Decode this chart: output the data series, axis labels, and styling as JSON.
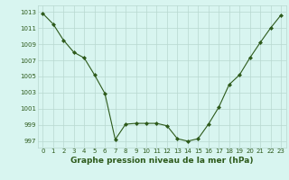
{
  "x": [
    0,
    1,
    2,
    3,
    4,
    5,
    6,
    7,
    8,
    9,
    10,
    11,
    12,
    13,
    14,
    15,
    16,
    17,
    18,
    19,
    20,
    21,
    22,
    23
  ],
  "y": [
    1012.8,
    1011.5,
    1009.5,
    1008.0,
    1007.3,
    1005.2,
    1002.9,
    997.2,
    999.1,
    999.2,
    999.2,
    999.2,
    998.9,
    997.3,
    997.0,
    997.3,
    999.1,
    1001.2,
    1004.0,
    1005.2,
    1007.3,
    1009.2,
    1011.0,
    1012.6
  ],
  "line_color": "#2d5a1b",
  "marker": "D",
  "marker_size": 2,
  "bg_color": "#d8f5f0",
  "grid_color": "#b8d8d0",
  "xlabel": "Graphe pression niveau de la mer (hPa)",
  "xlabel_fontsize": 6.5,
  "ylabel_ticks": [
    997,
    999,
    1001,
    1003,
    1005,
    1007,
    1009,
    1011,
    1013
  ],
  "ylim": [
    996.2,
    1013.8
  ],
  "xlim": [
    -0.5,
    23.5
  ],
  "xticks": [
    0,
    1,
    2,
    3,
    4,
    5,
    6,
    7,
    8,
    9,
    10,
    11,
    12,
    13,
    14,
    15,
    16,
    17,
    18,
    19,
    20,
    21,
    22,
    23
  ],
  "tick_fontsize": 5.0,
  "tick_color": "#2d5a1b"
}
